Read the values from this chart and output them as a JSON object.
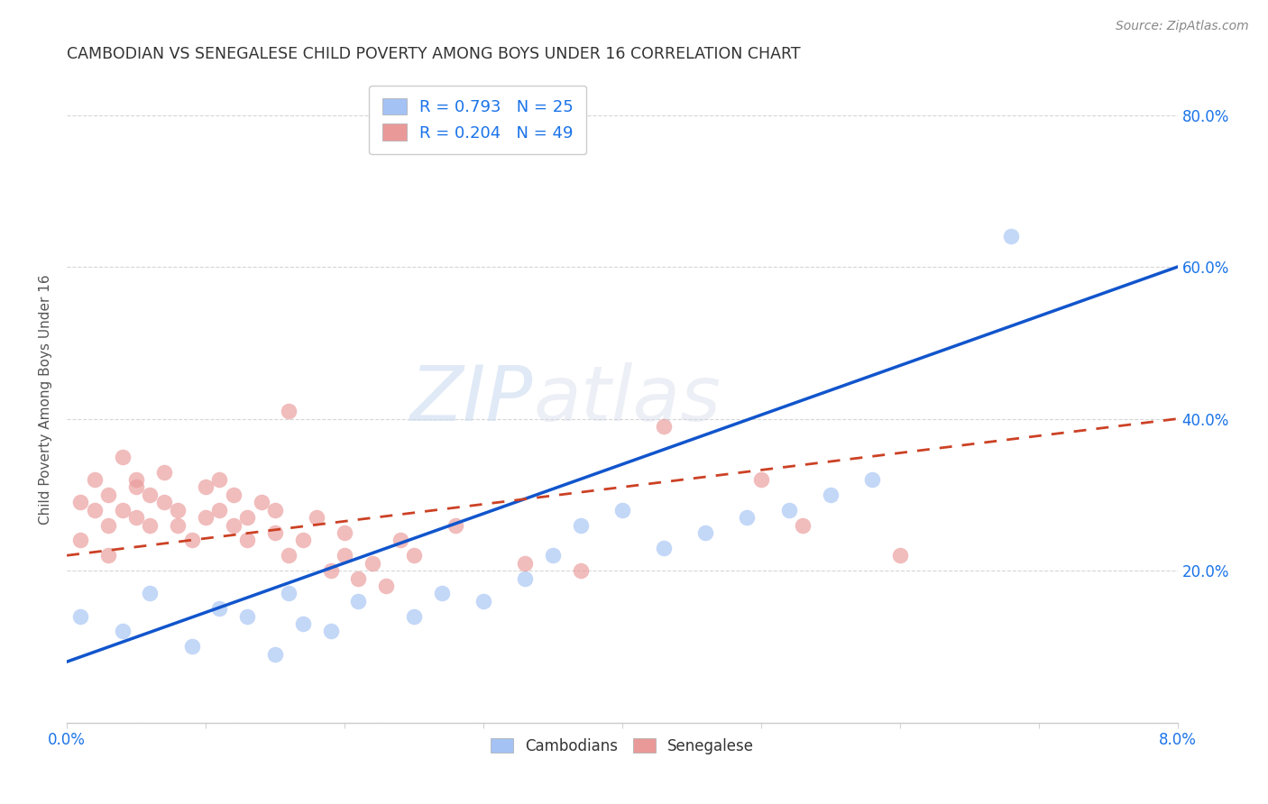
{
  "title": "CAMBODIAN VS SENEGALESE CHILD POVERTY AMONG BOYS UNDER 16 CORRELATION CHART",
  "source": "Source: ZipAtlas.com",
  "ylabel": "Child Poverty Among Boys Under 16",
  "watermark_zip": "ZIP",
  "watermark_atlas": "atlas",
  "legend_cambodian": "Cambodians",
  "legend_senegalese": "Senegalese",
  "R_cambodian": 0.793,
  "N_cambodian": 25,
  "R_senegalese": 0.204,
  "N_senegalese": 49,
  "cambodian_color": "#a4c2f4",
  "senegalese_color": "#ea9999",
  "cambodian_line_color": "#1155cc",
  "senegalese_line_color": "#cc4125",
  "xlim": [
    0.0,
    0.08
  ],
  "ylim": [
    0.0,
    0.85
  ],
  "yticks": [
    0.0,
    0.2,
    0.4,
    0.6,
    0.8
  ],
  "yticklabels": [
    "",
    "20.0%",
    "40.0%",
    "60.0%",
    "80.0%"
  ],
  "xtick_left": "0.0%",
  "xtick_right": "8.0%",
  "cam_line_x0": 0.0,
  "cam_line_y0": 0.08,
  "cam_line_x1": 0.08,
  "cam_line_y1": 0.6,
  "sen_line_x0": 0.0,
  "sen_line_y0": 0.22,
  "sen_line_x1": 0.08,
  "sen_line_y1": 0.4,
  "cambodian_x": [
    0.001,
    0.004,
    0.006,
    0.009,
    0.011,
    0.013,
    0.015,
    0.016,
    0.017,
    0.019,
    0.021,
    0.025,
    0.027,
    0.03,
    0.033,
    0.035,
    0.037,
    0.04,
    0.043,
    0.046,
    0.049,
    0.052,
    0.055,
    0.058,
    0.068
  ],
  "cambodian_y": [
    0.14,
    0.12,
    0.17,
    0.1,
    0.15,
    0.14,
    0.09,
    0.17,
    0.13,
    0.12,
    0.16,
    0.14,
    0.17,
    0.16,
    0.19,
    0.22,
    0.26,
    0.28,
    0.23,
    0.25,
    0.27,
    0.28,
    0.3,
    0.32,
    0.64
  ],
  "senegalese_x": [
    0.001,
    0.001,
    0.002,
    0.002,
    0.003,
    0.003,
    0.003,
    0.004,
    0.004,
    0.005,
    0.005,
    0.005,
    0.006,
    0.006,
    0.007,
    0.007,
    0.008,
    0.008,
    0.009,
    0.01,
    0.01,
    0.011,
    0.011,
    0.012,
    0.012,
    0.013,
    0.013,
    0.014,
    0.015,
    0.015,
    0.016,
    0.017,
    0.018,
    0.019,
    0.02,
    0.02,
    0.021,
    0.022,
    0.023,
    0.024,
    0.025,
    0.028,
    0.033,
    0.037,
    0.043,
    0.05,
    0.053,
    0.06,
    0.016
  ],
  "senegalese_y": [
    0.24,
    0.29,
    0.32,
    0.28,
    0.3,
    0.26,
    0.22,
    0.28,
    0.35,
    0.31,
    0.27,
    0.32,
    0.3,
    0.26,
    0.33,
    0.29,
    0.26,
    0.28,
    0.24,
    0.31,
    0.27,
    0.32,
    0.28,
    0.26,
    0.3,
    0.24,
    0.27,
    0.29,
    0.25,
    0.28,
    0.22,
    0.24,
    0.27,
    0.2,
    0.25,
    0.22,
    0.19,
    0.21,
    0.18,
    0.24,
    0.22,
    0.26,
    0.21,
    0.2,
    0.39,
    0.32,
    0.26,
    0.22,
    0.41
  ]
}
